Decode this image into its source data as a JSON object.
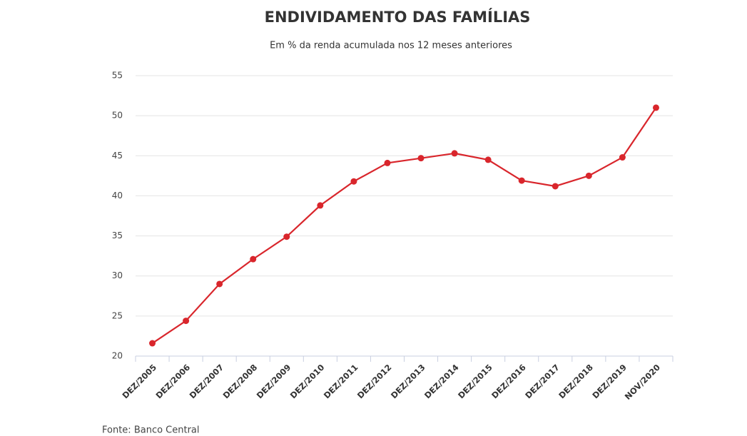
{
  "chart_data": {
    "type": "line",
    "title": "ENDIVIDAMENTO DAS FAMÍLIAS",
    "subtitle": "Em % da renda acumulada nos 12 meses anteriores",
    "source": "Fonte: Banco Central",
    "categories": [
      "DEZ/2005",
      "DEZ/2006",
      "DEZ/2007",
      "DEZ/2008",
      "DEZ/2009",
      "DEZ/2010",
      "DEZ/2011",
      "DEZ/2012",
      "DEZ/2013",
      "DEZ/2014",
      "DEZ/2015",
      "DEZ/2016",
      "DEZ/2017",
      "DEZ/2018",
      "DEZ/2019",
      "NOV/2020"
    ],
    "values": [
      21.6,
      24.4,
      29.0,
      32.1,
      34.9,
      38.8,
      41.8,
      44.1,
      44.7,
      45.3,
      44.5,
      41.9,
      41.2,
      42.5,
      44.8,
      51.0
    ],
    "color": "#d9262c",
    "ylim": [
      20,
      55
    ],
    "yticks": [
      20,
      25,
      30,
      35,
      40,
      45,
      50,
      55
    ],
    "grid": true
  }
}
